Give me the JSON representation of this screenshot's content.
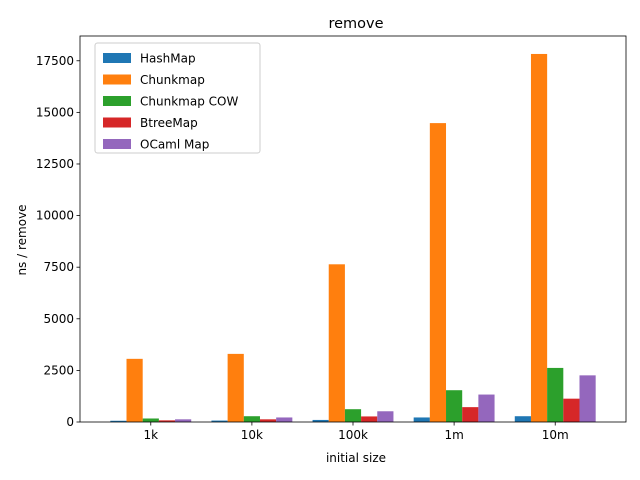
{
  "chart_data": {
    "type": "bar",
    "title": "remove",
    "xlabel": "initial size",
    "ylabel": "ns / remove",
    "categories": [
      "1k",
      "10k",
      "100k",
      "1m",
      "10m"
    ],
    "ylim": [
      0,
      18700
    ],
    "yticks": [
      0,
      2500,
      5000,
      7500,
      10000,
      12500,
      15000,
      17500
    ],
    "legend_position": "top-left",
    "series": [
      {
        "name": "HashMap",
        "color": "#1f77b4",
        "values": [
          60,
          70,
          100,
          220,
          280
        ]
      },
      {
        "name": "Chunkmap",
        "color": "#ff7f0e",
        "values": [
          3060,
          3300,
          7640,
          14480,
          17830
        ]
      },
      {
        "name": "Chunkmap COW",
        "color": "#2ca02c",
        "values": [
          170,
          280,
          620,
          1540,
          2620
        ]
      },
      {
        "name": "BtreeMap",
        "color": "#d62728",
        "values": [
          80,
          130,
          270,
          720,
          1130
        ]
      },
      {
        "name": "OCaml Map",
        "color": "#9467bd",
        "values": [
          130,
          220,
          520,
          1330,
          2260
        ]
      }
    ]
  }
}
